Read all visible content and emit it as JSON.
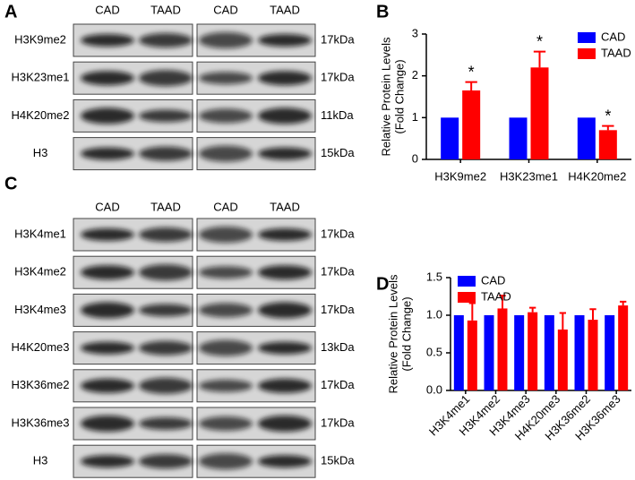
{
  "blots": [
    {
      "panel": "A",
      "lanes": [
        "CAD",
        "TAAD",
        "CAD",
        "TAAD"
      ],
      "rows": [
        {
          "label": "H3K9me2",
          "size": "17kDa"
        },
        {
          "label": "H3K23me1",
          "size": "17kDa"
        },
        {
          "label": "H4K20me2",
          "size": "11kDa"
        },
        {
          "label": "H3",
          "size": "15kDa"
        }
      ]
    },
    {
      "panel": "C",
      "lanes": [
        "CAD",
        "TAAD",
        "CAD",
        "TAAD"
      ],
      "rows": [
        {
          "label": "H3K4me1",
          "size": "17kDa"
        },
        {
          "label": "H3K4me2",
          "size": "17kDa"
        },
        {
          "label": "H3K4me3",
          "size": "17kDa"
        },
        {
          "label": "H4K20me3",
          "size": "13kDa"
        },
        {
          "label": "H3K36me2",
          "size": "17kDa"
        },
        {
          "label": "H3K36me3",
          "size": "17kDa"
        },
        {
          "label": "H3",
          "size": "15kDa"
        }
      ]
    }
  ],
  "chart_data": [
    {
      "panel": "B",
      "type": "bar",
      "ylabel": [
        "Relative Protein Levels",
        "(Fold Change)"
      ],
      "categories": [
        "H3K9me2",
        "H3K23me1",
        "H4K20me2"
      ],
      "series": [
        {
          "name": "CAD",
          "color": "#0000ff",
          "values": [
            1,
            1,
            1
          ]
        },
        {
          "name": "TAAD",
          "color": "#ff0000",
          "values": [
            1.65,
            2.2,
            0.7
          ],
          "errors": [
            0.2,
            0.38,
            0.1
          ]
        }
      ],
      "annotations": [
        "*",
        "*",
        "*"
      ],
      "ylim": [
        0,
        3
      ],
      "yticks": [
        0,
        1,
        2,
        3
      ],
      "legend": "upper right"
    },
    {
      "panel": "D",
      "type": "bar",
      "ylabel": [
        "Relative Protein Levels",
        "(Fold Change)"
      ],
      "categories": [
        "H3K4me1",
        "H3K4me2",
        "H3K4me3",
        "H4K20me3",
        "H3K36me2",
        "H3K36me3"
      ],
      "series": [
        {
          "name": "CAD",
          "color": "#0000ff",
          "values": [
            1,
            1,
            1,
            1,
            1,
            1
          ]
        },
        {
          "name": "TAAD",
          "color": "#ff0000",
          "values": [
            0.93,
            1.09,
            1.04,
            0.81,
            0.94,
            1.13
          ],
          "errors": [
            0.23,
            0.17,
            0.06,
            0.22,
            0.14,
            0.05
          ]
        }
      ],
      "ylim": [
        0,
        1.5
      ],
      "yticks": [
        {
          "value": 0,
          "label": "0.0"
        },
        {
          "value": 0.5,
          "label": "0.5"
        },
        {
          "value": 1,
          "label": "1.0"
        },
        {
          "value": 1.5,
          "label": "1.5"
        }
      ],
      "legend": "upper left"
    }
  ]
}
